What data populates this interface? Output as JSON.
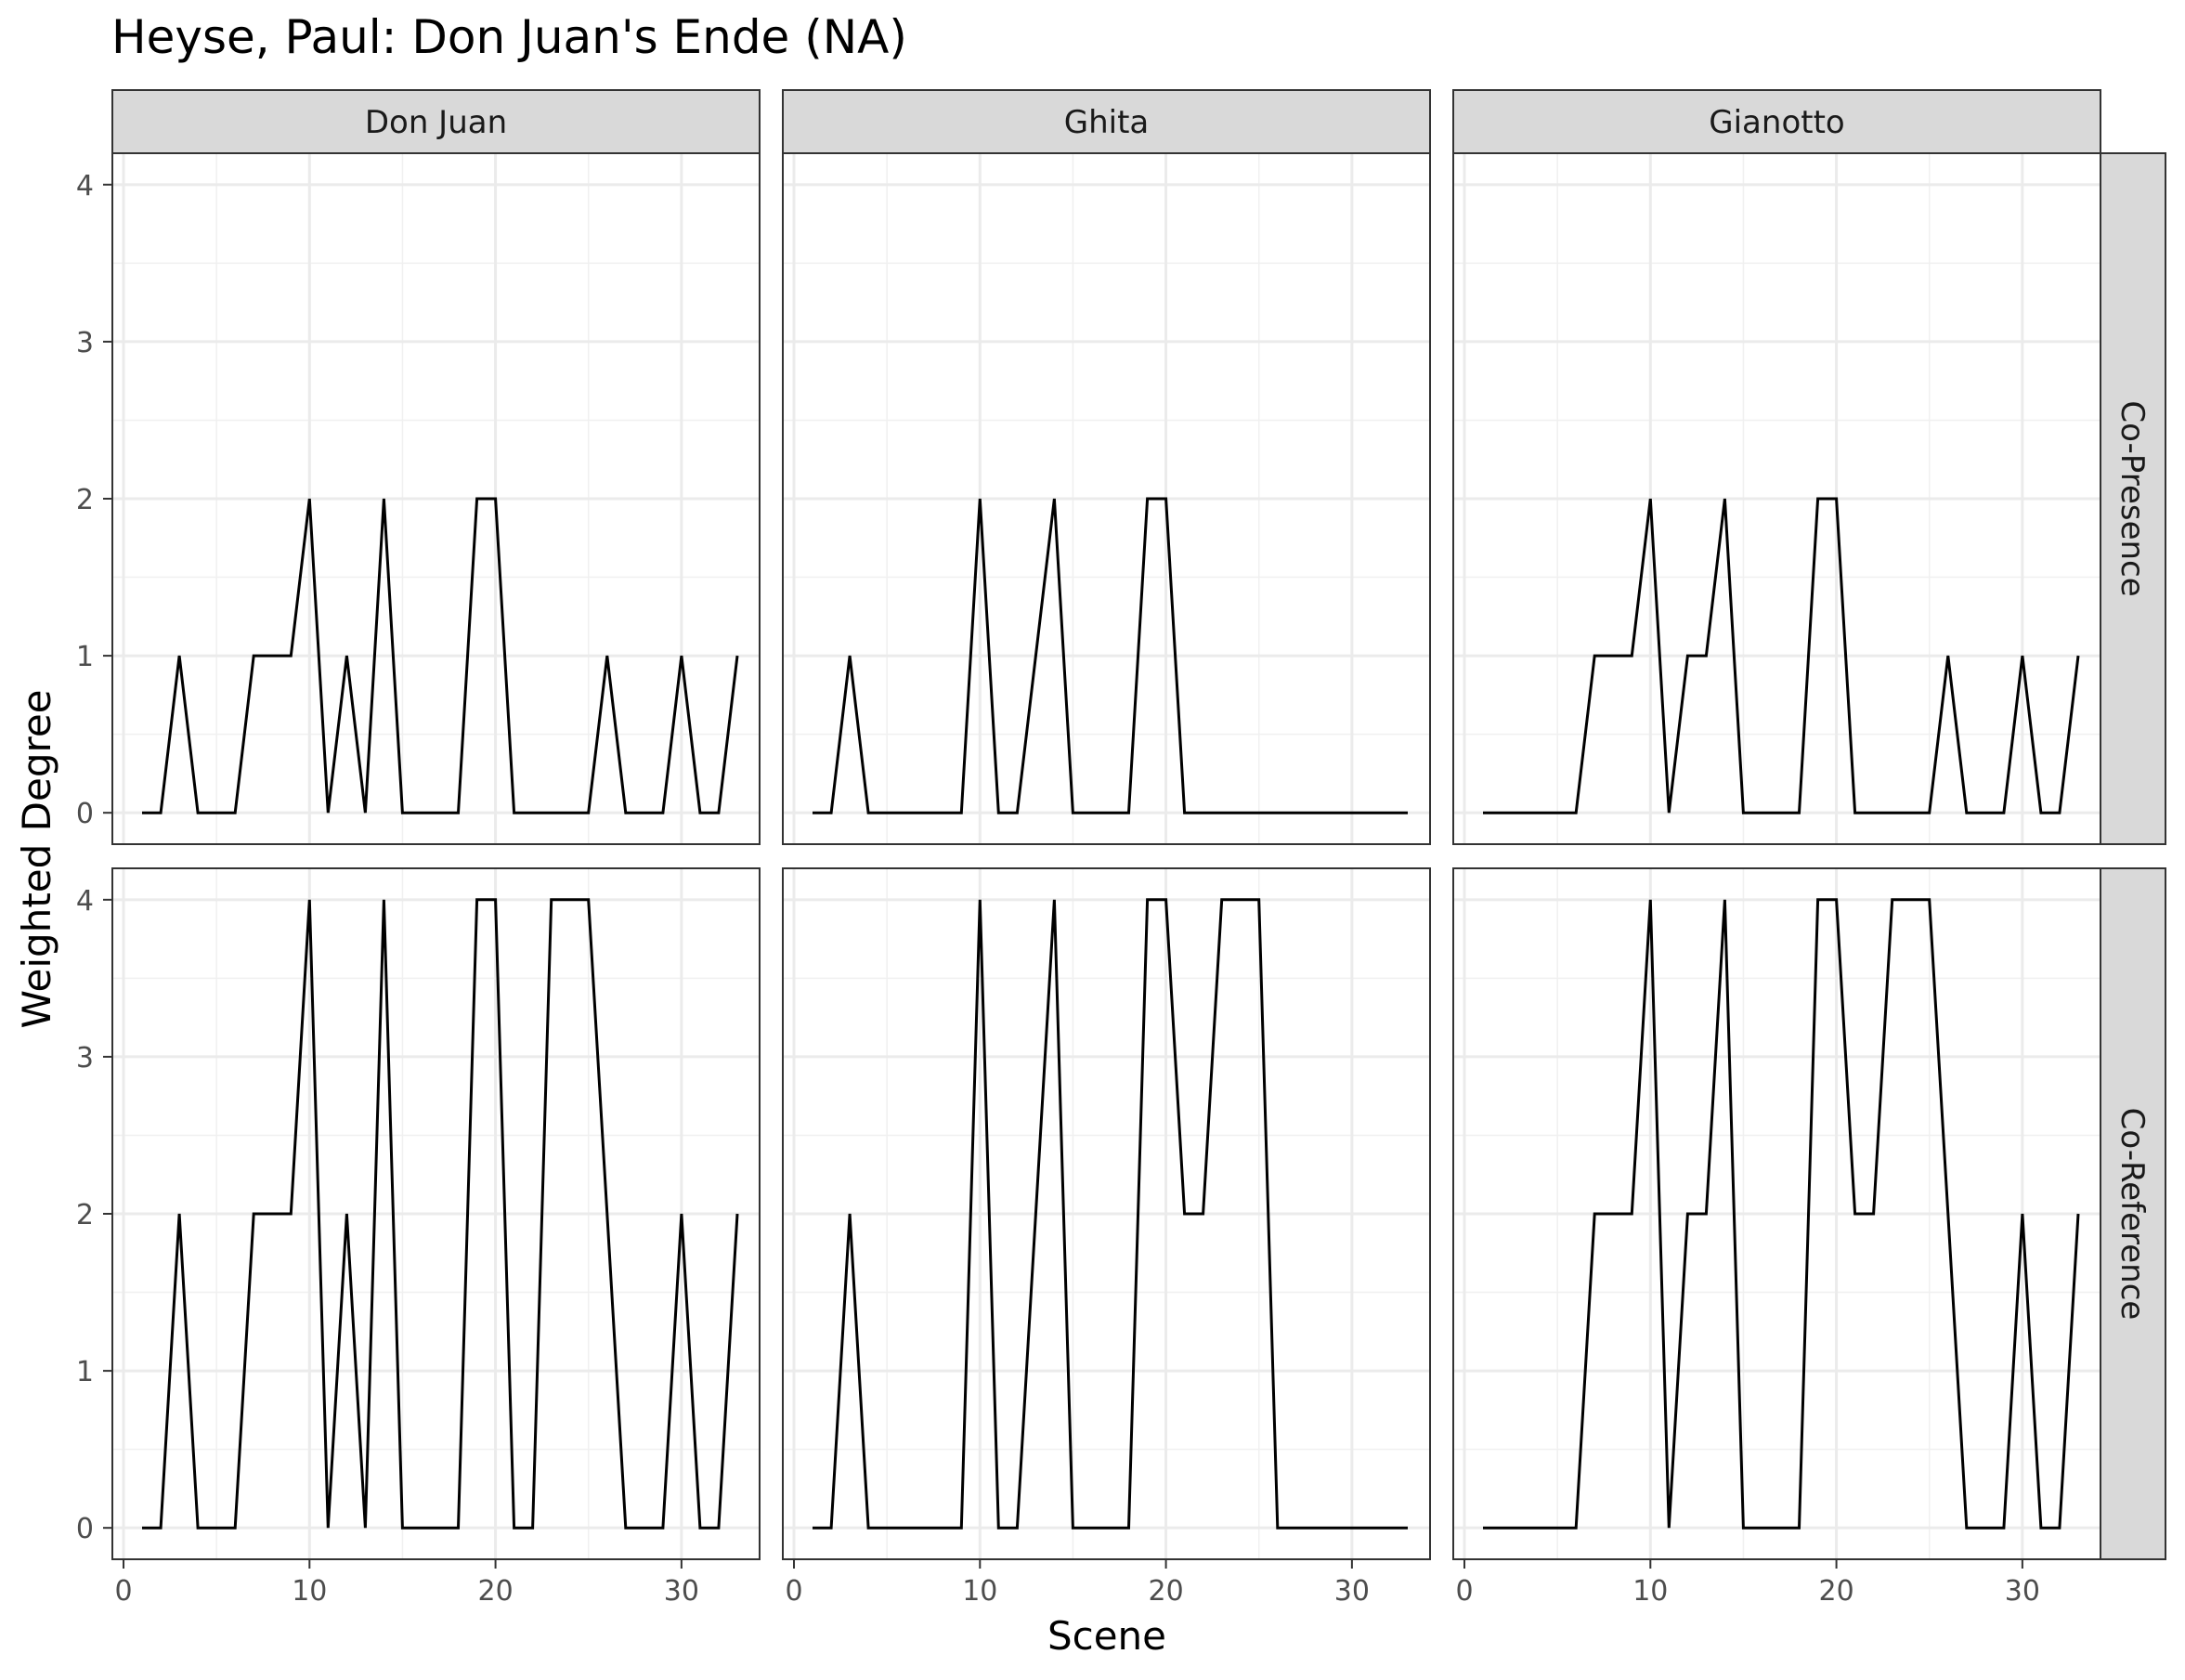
{
  "chart_data": {
    "type": "line",
    "title": "Heyse, Paul: Don Juan's Ende (NA)",
    "xlabel": "Scene",
    "ylabel": "Weighted Degree",
    "xlim": [
      -0.6,
      34.2
    ],
    "ylim": [
      -0.2,
      4.2
    ],
    "x_ticks": [
      0,
      10,
      20,
      30
    ],
    "y_ticks": [
      0,
      1,
      2,
      3,
      4
    ],
    "grid": true,
    "columns": [
      "Don Juan",
      "Ghita",
      "Gianotto"
    ],
    "rows": [
      "Co-Presence",
      "Co-Reference"
    ],
    "line_color": "#000000",
    "x": [
      1,
      2,
      3,
      4,
      5,
      6,
      7,
      8,
      9,
      10,
      11,
      12,
      13,
      14,
      15,
      16,
      17,
      18,
      19,
      20,
      21,
      22,
      23,
      24,
      25,
      26,
      27,
      28,
      29,
      30,
      31,
      32,
      33
    ],
    "panels": [
      {
        "column": "Don Juan",
        "row": "Co-Presence",
        "values": [
          0,
          0,
          1,
          0,
          0,
          0,
          1,
          1,
          1,
          2,
          0,
          1,
          0,
          2,
          0,
          0,
          0,
          0,
          2,
          2,
          0,
          0,
          0,
          0,
          0,
          1,
          0,
          0,
          0,
          1,
          0,
          0,
          1
        ]
      },
      {
        "column": "Ghita",
        "row": "Co-Presence",
        "values": [
          0,
          0,
          1,
          0,
          0,
          0,
          0,
          0,
          0,
          2,
          0,
          0,
          1,
          2,
          0,
          0,
          0,
          0,
          2,
          2,
          0,
          0,
          0,
          0,
          0,
          0,
          0,
          0,
          0,
          0,
          0,
          0,
          0
        ]
      },
      {
        "column": "Gianotto",
        "row": "Co-Presence",
        "values": [
          0,
          0,
          0,
          0,
          0,
          0,
          1,
          1,
          1,
          2,
          0,
          1,
          1,
          2,
          0,
          0,
          0,
          0,
          2,
          2,
          0,
          0,
          0,
          0,
          0,
          1,
          0,
          0,
          0,
          1,
          0,
          0,
          1
        ]
      },
      {
        "column": "Don Juan",
        "row": "Co-Reference",
        "values": [
          0,
          0,
          2,
          0,
          0,
          0,
          2,
          2,
          2,
          4,
          0,
          2,
          0,
          4,
          0,
          0,
          0,
          0,
          4,
          4,
          0,
          0,
          4,
          4,
          4,
          2,
          0,
          0,
          0,
          2,
          0,
          0,
          2
        ]
      },
      {
        "column": "Ghita",
        "row": "Co-Reference",
        "values": [
          0,
          0,
          2,
          0,
          0,
          0,
          0,
          0,
          0,
          4,
          0,
          0,
          2,
          4,
          0,
          0,
          0,
          0,
          4,
          4,
          2,
          2,
          4,
          4,
          4,
          0,
          0,
          0,
          0,
          0,
          0,
          0,
          0
        ]
      },
      {
        "column": "Gianotto",
        "row": "Co-Reference",
        "values": [
          0,
          0,
          0,
          0,
          0,
          0,
          2,
          2,
          2,
          4,
          0,
          2,
          2,
          4,
          0,
          0,
          0,
          0,
          4,
          4,
          2,
          2,
          4,
          4,
          4,
          2,
          0,
          0,
          0,
          2,
          0,
          0,
          2
        ]
      }
    ]
  }
}
